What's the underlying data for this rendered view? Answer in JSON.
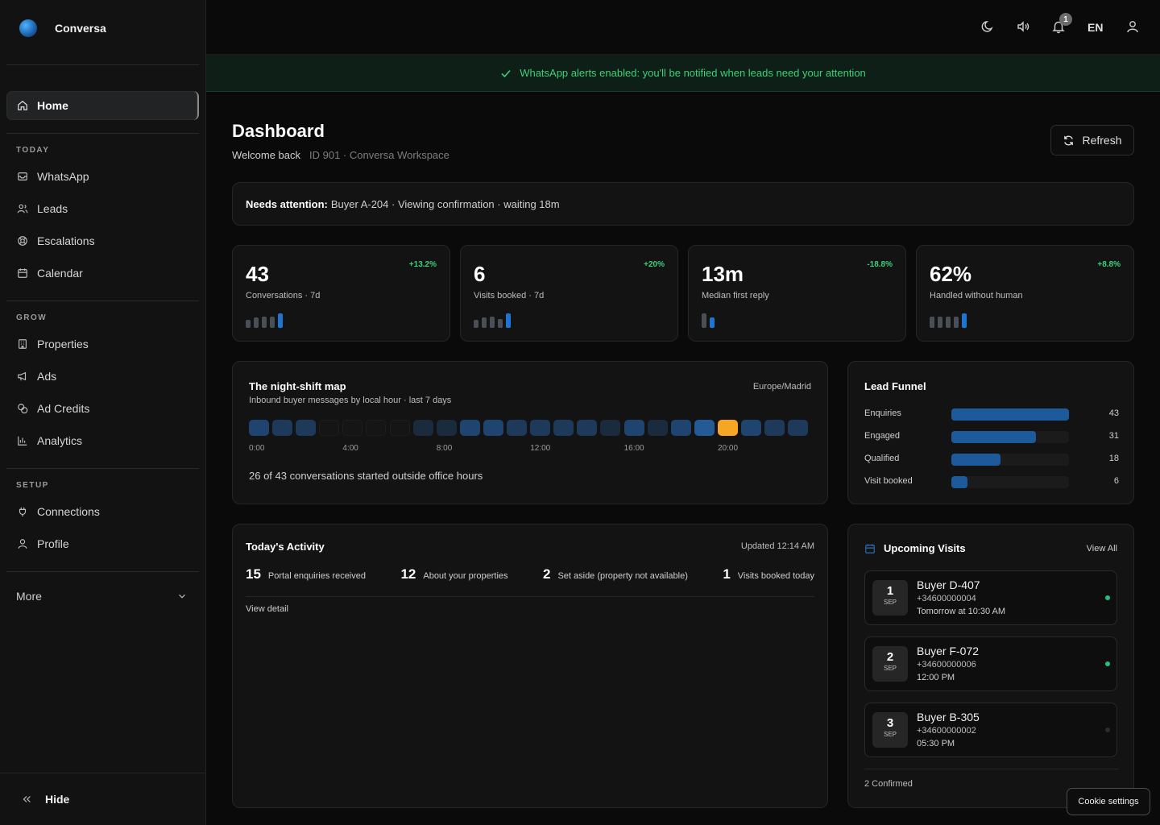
{
  "app": {
    "name": "Conversa"
  },
  "sidebar": {
    "home": "Home",
    "sections": [
      {
        "title": "TODAY",
        "items": [
          {
            "label": "WhatsApp",
            "icon": "inbox-icon"
          },
          {
            "label": "Leads",
            "icon": "users-icon"
          },
          {
            "label": "Escalations",
            "icon": "lifebuoy-icon"
          },
          {
            "label": "Calendar",
            "icon": "calendar-icon"
          }
        ]
      },
      {
        "title": "GROW",
        "items": [
          {
            "label": "Properties",
            "icon": "building-icon"
          },
          {
            "label": "Ads",
            "icon": "megaphone-icon"
          },
          {
            "label": "Ad Credits",
            "icon": "coins-icon"
          },
          {
            "label": "Analytics",
            "icon": "bar-chart-icon"
          }
        ]
      },
      {
        "title": "SETUP",
        "items": [
          {
            "label": "Connections",
            "icon": "plug-icon"
          },
          {
            "label": "Profile",
            "icon": "user-icon"
          }
        ]
      }
    ],
    "more": "More",
    "hide": "Hide"
  },
  "topbar": {
    "notification_count": "1",
    "language": "EN"
  },
  "alert": {
    "text": "WhatsApp alerts enabled: you'll be notified when leads need your attention",
    "color": "#3ecf7a"
  },
  "header": {
    "title": "Dashboard",
    "welcome": "Welcome back",
    "workspace": "ID 901 · Conversa Workspace",
    "refresh": "Refresh"
  },
  "attention": {
    "label": "Needs attention:",
    "text": "Buyer A-204 · Viewing confirmation · waiting 18m"
  },
  "stats": [
    {
      "value": "43",
      "label": "Conversations · 7d",
      "delta": "+13.2%",
      "delta_color": "#3ecf7a",
      "bars": [
        0.55,
        0.7,
        0.75,
        0.8,
        1.0
      ],
      "highlight": 4
    },
    {
      "value": "6",
      "label": "Visits booked · 7d",
      "delta": "+20%",
      "delta_color": "#3ecf7a",
      "bars": [
        0.55,
        0.7,
        0.75,
        0.6,
        1.0
      ],
      "highlight": 4
    },
    {
      "value": "13m",
      "label": "Median first reply",
      "delta": "-18.8%",
      "delta_color": "#3ecf7a",
      "bars": [
        1.0,
        0.7
      ],
      "highlight": 1
    },
    {
      "value": "62%",
      "label": "Handled without human",
      "delta": "+8.8%",
      "delta_color": "#3ecf7a",
      "bars": [
        0.75,
        0.75,
        0.8,
        0.8,
        1.0
      ],
      "highlight": 4
    }
  ],
  "night_shift": {
    "title": "The night-shift map",
    "subtitle": "Inbound buyer messages by local hour · last 7 days",
    "timezone": "Europe/Madrid",
    "hour_levels": [
      3,
      2,
      2,
      0,
      0,
      0,
      0,
      1,
      1,
      3,
      3,
      2,
      2,
      2,
      2,
      1,
      3,
      1,
      3,
      4,
      5,
      3,
      2,
      2
    ],
    "peak_color": "#f5a623",
    "ticks": [
      "0:00",
      "4:00",
      "8:00",
      "12:00",
      "16:00",
      "20:00"
    ],
    "note": "26 of 43 conversations started outside office hours"
  },
  "funnel": {
    "title": "Lead Funnel",
    "max": 43,
    "rows": [
      {
        "label": "Enquiries",
        "value": 43
      },
      {
        "label": "Engaged",
        "value": 31
      },
      {
        "label": "Qualified",
        "value": 18
      },
      {
        "label": "Visit booked",
        "value": 6
      }
    ]
  },
  "activity": {
    "title": "Today's Activity",
    "updated": "Updated 12:14 AM",
    "stats": [
      {
        "n": "15",
        "t": "Portal enquiries received"
      },
      {
        "n": "12",
        "t": "About your properties"
      },
      {
        "n": "2",
        "t": "Set aside (property not available)"
      },
      {
        "n": "1",
        "t": "Visits booked today"
      }
    ],
    "detail": "View detail"
  },
  "visits": {
    "title": "Upcoming Visits",
    "view_all": "View All",
    "items": [
      {
        "day": "1",
        "month": "SEP",
        "name": "Buyer D-407",
        "phone": "+34600000004",
        "when": "Tomorrow at 10:30 AM",
        "status_color": "#22c07a"
      },
      {
        "day": "2",
        "month": "SEP",
        "name": "Buyer F-072",
        "phone": "+34600000006",
        "when": "12:00 PM",
        "status_color": "#22c07a"
      },
      {
        "day": "3",
        "month": "SEP",
        "name": "Buyer B-305",
        "phone": "+34600000002",
        "when": "05:30 PM",
        "status_color": "#2c2c2c"
      }
    ],
    "confirmed": "2 Confirmed"
  },
  "cookie": "Cookie settings"
}
